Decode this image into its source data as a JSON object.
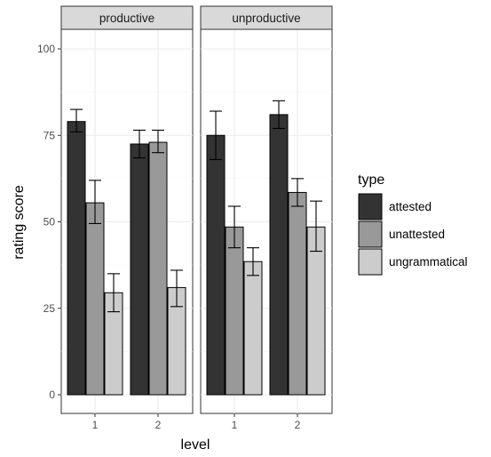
{
  "chart_data": {
    "type": "bar",
    "facets": [
      "productive",
      "unproductive"
    ],
    "categories": [
      "1",
      "2"
    ],
    "xlabel": "level",
    "ylabel": "rating score",
    "ylim": [
      0,
      100
    ],
    "yticks": [
      0,
      25,
      50,
      75,
      100
    ],
    "grid": true,
    "legend": {
      "title": "type",
      "placement": "right",
      "entries": [
        "attested",
        "unattested",
        "ungrammatical"
      ]
    },
    "series": [
      {
        "name": "attested",
        "color": "#333333",
        "values": {
          "productive": [
            79,
            72.5
          ],
          "unproductive": [
            75,
            81
          ]
        },
        "error": {
          "productive": [
            [
              76,
              82.5
            ],
            [
              68.5,
              76.5
            ]
          ],
          "unproductive": [
            [
              68,
              82
            ],
            [
              77,
              85
            ]
          ]
        }
      },
      {
        "name": "unattested",
        "color": "#999999",
        "values": {
          "productive": [
            55.5,
            73
          ],
          "unproductive": [
            48.5,
            58.5
          ]
        },
        "error": {
          "productive": [
            [
              49.5,
              62
            ],
            [
              70,
              76.5
            ]
          ],
          "unproductive": [
            [
              42.5,
              54.5
            ],
            [
              54.5,
              62.5
            ]
          ]
        }
      },
      {
        "name": "ungrammatical",
        "color": "#cccccc",
        "values": {
          "productive": [
            29.5,
            31
          ],
          "unproductive": [
            38.5,
            48.5
          ]
        },
        "error": {
          "productive": [
            [
              24,
              35
            ],
            [
              25.5,
              36
            ]
          ],
          "unproductive": [
            [
              34.5,
              42.5
            ],
            [
              41.5,
              56
            ]
          ]
        }
      }
    ]
  }
}
